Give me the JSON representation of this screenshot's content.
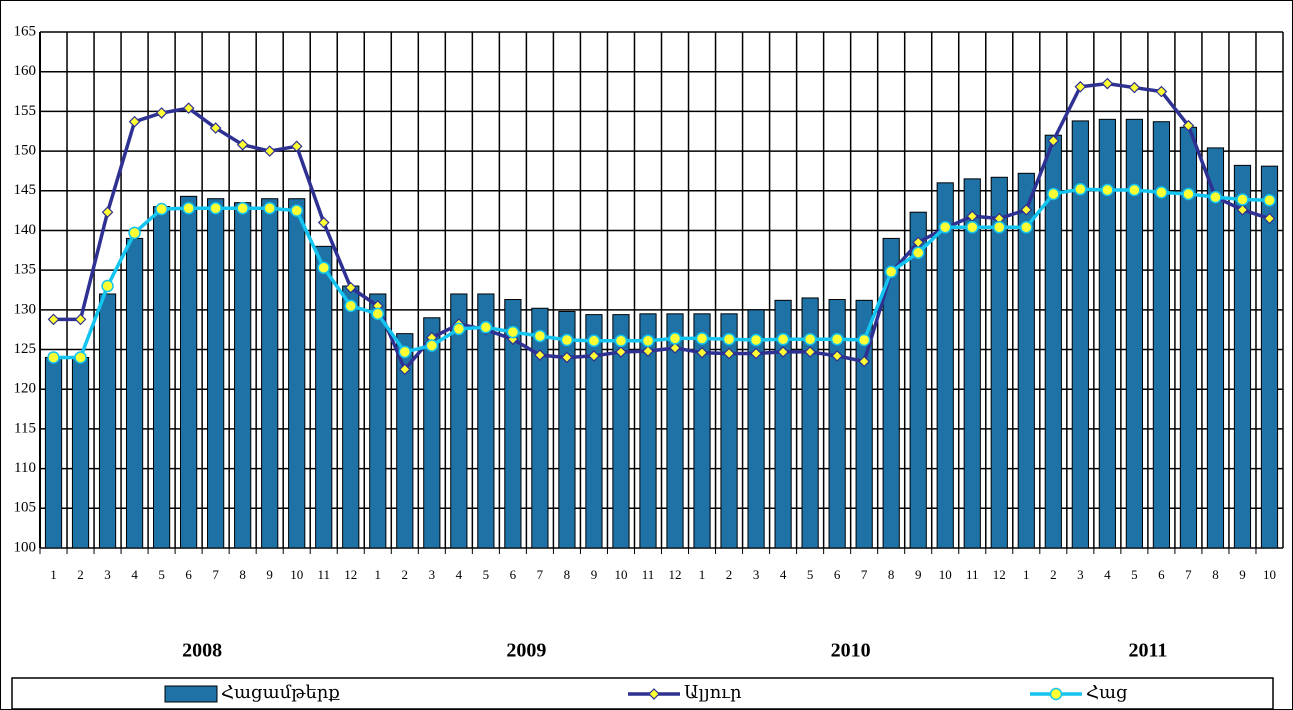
{
  "chart_data": {
    "type": "combo",
    "categories": [
      "1",
      "2",
      "3",
      "4",
      "5",
      "6",
      "7",
      "8",
      "9",
      "10",
      "11",
      "12",
      "1",
      "2",
      "3",
      "4",
      "5",
      "6",
      "7",
      "8",
      "9",
      "10",
      "11",
      "12",
      "1",
      "2",
      "3",
      "4",
      "5",
      "6",
      "7",
      "8",
      "9",
      "10",
      "11",
      "12",
      "1",
      "2",
      "3",
      "4",
      "5",
      "6",
      "7",
      "8",
      "9",
      "10"
    ],
    "x_groups": [
      "2008",
      "2009",
      "2010",
      "2011"
    ],
    "series": [
      {
        "name": "Հացամթերք",
        "type": "bar",
        "color": "#1f72a6",
        "values": [
          124,
          124,
          132,
          139,
          143,
          144.3,
          144,
          143.5,
          144,
          144,
          138,
          133,
          132,
          127,
          129,
          132,
          132,
          131.3,
          130.2,
          129.8,
          129.4,
          129.4,
          129.5,
          129.5,
          129.5,
          129.5,
          130,
          131.2,
          131.5,
          131.3,
          131.2,
          139,
          142.3,
          146,
          146.5,
          146.7,
          147.2,
          152,
          153.8,
          154,
          154,
          153.7,
          153,
          150.4,
          148.2,
          148.1
        ]
      },
      {
        "name": "Ալյուր",
        "type": "line",
        "marker": "diamond",
        "color": "#2e3192",
        "values": [
          128.8,
          128.8,
          142.3,
          153.7,
          154.8,
          155.4,
          152.9,
          150.8,
          150,
          150.6,
          141,
          132.8,
          130.5,
          122.5,
          126.5,
          128.2,
          127.5,
          126.3,
          124.3,
          124,
          124.2,
          124.7,
          124.8,
          125.2,
          124.6,
          124.5,
          124.5,
          124.7,
          124.7,
          124.2,
          123.5,
          134.7,
          138.5,
          140.3,
          141.8,
          141.5,
          142.6,
          151.3,
          158.1,
          158.5,
          158,
          157.5,
          153.2,
          144.2,
          142.6,
          141.5
        ]
      },
      {
        "name": "Հաց",
        "type": "line",
        "marker": "circle",
        "color": "#13c4f0",
        "values": [
          124,
          124,
          133,
          139.7,
          142.7,
          142.8,
          142.8,
          142.8,
          142.8,
          142.5,
          135.3,
          130.5,
          129.5,
          124.7,
          125.5,
          127.6,
          127.8,
          127.2,
          126.7,
          126.2,
          126.1,
          126.1,
          126.1,
          126.4,
          126.4,
          126.3,
          126.2,
          126.3,
          126.3,
          126.3,
          126.2,
          134.8,
          137.2,
          140.4,
          140.4,
          140.4,
          140.4,
          144.6,
          145.2,
          145.1,
          145.1,
          144.8,
          144.6,
          144.2,
          143.9,
          143.8
        ]
      }
    ],
    "marker_color": "#ffff33",
    "ylim": [
      100,
      165
    ],
    "yticks": [
      100,
      105,
      110,
      115,
      120,
      125,
      130,
      135,
      140,
      145,
      150,
      155,
      160,
      165
    ],
    "grid": true,
    "legend": "bottom"
  }
}
